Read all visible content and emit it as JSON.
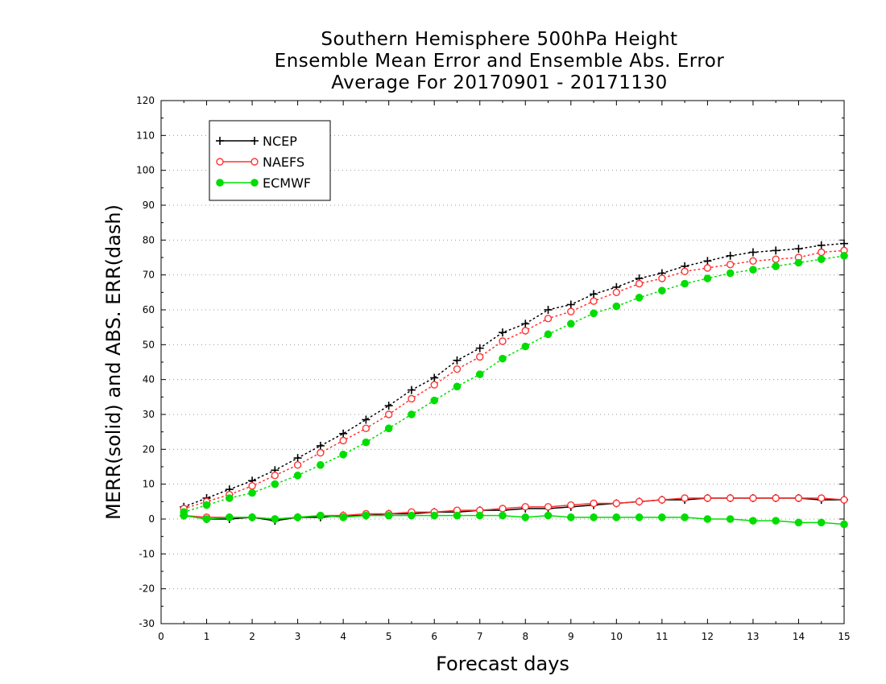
{
  "chart_data": {
    "type": "line",
    "title_lines": [
      "Southern Hemisphere 500hPa Height",
      "Ensemble Mean Error and Ensemble Abs. Error",
      "Average For 20170901 - 20171130"
    ],
    "xlabel": "Forecast days",
    "ylabel": "MERR(solid) and ABS. ERR(dash)",
    "xlim": [
      0,
      15
    ],
    "ylim": [
      -30,
      120
    ],
    "xticks": [
      "0",
      "1",
      "2",
      "3",
      "4",
      "5",
      "6",
      "7",
      "8",
      "9",
      "10",
      "11",
      "12",
      "13",
      "14",
      "15"
    ],
    "yticks": [
      "120",
      "110",
      "100",
      "90",
      "80",
      "70",
      "60",
      "50",
      "40",
      "30",
      "20",
      "10",
      "0",
      "-10",
      "-20",
      "-30"
    ],
    "grid": "horizontal dotted",
    "legend_position": "top-left",
    "x": [
      0.5,
      1,
      1.5,
      2,
      2.5,
      3,
      3.5,
      4,
      4.5,
      5,
      5.5,
      6,
      6.5,
      7,
      7.5,
      8,
      8.5,
      9,
      9.5,
      10,
      10.5,
      11,
      11.5,
      12,
      12.5,
      13,
      13.5,
      14,
      14.5,
      15
    ],
    "series": [
      {
        "name": "NCEP",
        "color": "#000000",
        "marker": "plus",
        "merr": [
          1,
          0,
          0,
          0.5,
          -0.5,
          0.5,
          0.5,
          1,
          1,
          1.5,
          1.5,
          2,
          2,
          2.5,
          2.5,
          3,
          3,
          3.5,
          4,
          4.5,
          5,
          5.5,
          5.5,
          6,
          6,
          6,
          6,
          6,
          5.5,
          5.5
        ],
        "abs_err": [
          3.5,
          6,
          8.5,
          11,
          14,
          17.5,
          21,
          24.5,
          28.5,
          32.5,
          37,
          40.5,
          45.5,
          49,
          53.5,
          56,
          60,
          61.5,
          64.5,
          66.5,
          69,
          70.5,
          72.5,
          74,
          75.5,
          76.5,
          77,
          77.5,
          78.5,
          79
        ]
      },
      {
        "name": "NAEFS",
        "color": "#ff3333",
        "marker": "open-circle",
        "merr": [
          1,
          0.5,
          0.5,
          0.5,
          0,
          0.5,
          1,
          1,
          1.5,
          1.5,
          2,
          2,
          2.5,
          2.5,
          3,
          3.5,
          3.5,
          4,
          4.5,
          4.5,
          5,
          5.5,
          6,
          6,
          6,
          6,
          6,
          6,
          6,
          5.5
        ],
        "abs_err": [
          3,
          5,
          7,
          9.5,
          12.5,
          15.5,
          19,
          22.5,
          26,
          30,
          34.5,
          38.5,
          43,
          46.5,
          51,
          54,
          57.5,
          59.5,
          62.5,
          65,
          67.5,
          69,
          71,
          72,
          73,
          74,
          74.5,
          75,
          76.5,
          77
        ]
      },
      {
        "name": "ECMWF",
        "color": "#00dd00",
        "marker": "filled-circle",
        "merr": [
          1,
          0,
          0.5,
          0.5,
          0,
          0.5,
          1,
          0.5,
          1,
          1,
          1,
          1,
          1,
          1,
          1,
          0.5,
          1,
          0.5,
          0.5,
          0.5,
          0.5,
          0.5,
          0.5,
          0,
          0,
          -0.5,
          -0.5,
          -1,
          -1,
          -1.5
        ],
        "abs_err": [
          2,
          4,
          6,
          7.5,
          10,
          12.5,
          15.5,
          18.5,
          22,
          26,
          30,
          34,
          38,
          41.5,
          46,
          49.5,
          53,
          56,
          59,
          61,
          63.5,
          65.5,
          67.5,
          69,
          70.5,
          71.5,
          72.5,
          73.5,
          74.5,
          75.5
        ]
      }
    ]
  }
}
